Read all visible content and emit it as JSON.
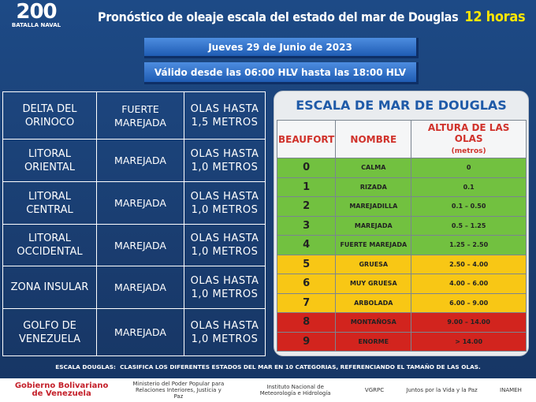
{
  "logo": {
    "number": "200",
    "text": "BATALLA NAVAL"
  },
  "header": {
    "title": "Pronóstico de oleaje escala del estado del mar de Douglas",
    "highlight": "12 horas"
  },
  "date": "Jueves 29 de Junio de 2023",
  "validity": "Válido desde las 06:00 HLV hasta las 18:00 HLV",
  "zones": {
    "rows": [
      [
        "DELTA DEL\nORINOCO",
        "FUERTE\nMAREJADA",
        "OLAS HASTA\n1,5 METROS"
      ],
      [
        "LITORAL\nORIENTAL",
        "MAREJADA",
        "OLAS HASTA\n1,0 METROS"
      ],
      [
        "LITORAL\nCENTRAL",
        "MAREJADA",
        "OLAS HASTA\n1,0 METROS"
      ],
      [
        "LITORAL\nOCCIDENTAL",
        "MAREJADA",
        "OLAS HASTA\n1,0 METROS"
      ],
      [
        "ZONA INSULAR",
        "MAREJADA",
        "OLAS HASTA\n1,0 METROS"
      ],
      [
        "GOLFO DE\nVENEZUELA",
        "MAREJADA",
        "OLAS HASTA\n1,0 METROS"
      ]
    ]
  },
  "scale": {
    "title": "ESCALA  DE MAR DE DOUGLAS",
    "headers": [
      "BEAUFORT",
      "NOMBRE",
      "ALTURA DE LAS OLAS"
    ],
    "unit": "(metros)",
    "rows": [
      {
        "beaufort": 0,
        "nombre": "CALMA",
        "altura": "0",
        "color": "g"
      },
      {
        "beaufort": 1,
        "nombre": "RIZADA",
        "altura": "0.1",
        "color": "g"
      },
      {
        "beaufort": 2,
        "nombre": "MAREJADILLA",
        "altura": "0.1 – 0.50",
        "color": "g"
      },
      {
        "beaufort": 3,
        "nombre": "MAREJADA",
        "altura": "0.5 – 1.25",
        "color": "g"
      },
      {
        "beaufort": 4,
        "nombre": "FUERTE MAREJADA",
        "altura": "1.25 – 2.50",
        "color": "g"
      },
      {
        "beaufort": 5,
        "nombre": "GRUESA",
        "altura": "2.50 – 4.00",
        "color": "y"
      },
      {
        "beaufort": 6,
        "nombre": "MUY GRUESA",
        "altura": "4.00 – 6.00",
        "color": "y"
      },
      {
        "beaufort": 7,
        "nombre": "ARBOLADA",
        "altura": "6.00 – 9.00",
        "color": "y"
      },
      {
        "beaufort": 8,
        "nombre": "MONTAÑOSA",
        "altura": "9.00 – 14.00",
        "color": "r"
      },
      {
        "beaufort": 9,
        "nombre": "ENORME",
        "altura": "> 14.00",
        "color": "r"
      }
    ]
  },
  "footer": {
    "label": "ESCALA DOUGLAS:",
    "text": "CLASIFICA LOS DIFERENTES  ESTADOS DEL MAR EN 10 CATEGORIAS,  REFERENCIANDO  EL TAMAÑO  DE LAS OLAS."
  },
  "logos": [
    "Gobierno Bolivariano de Venezuela",
    "Ministerio del Poder Popular para Relaciones Interiores, Justicia y Paz",
    "Instituto Nacional de Meteorología e Hidrología",
    "VGRPC",
    "Juntos por la Vida y la Paz",
    "INAMEH"
  ]
}
